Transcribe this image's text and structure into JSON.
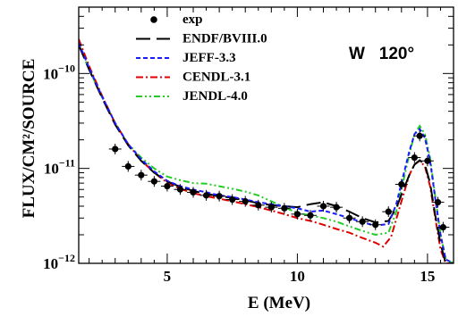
{
  "chart_data": {
    "type": "line",
    "xlabel": "E (MeV)",
    "ylabel": "FLUX/CM²/SOURCE",
    "annotation": "W   120°",
    "xlim": [
      1.6,
      16
    ],
    "ylim": [
      1e-12,
      5e-10
    ],
    "yscale": "log",
    "x_ticks": [
      5,
      10,
      15
    ],
    "y_ticks": [
      {
        "value": 1e-12,
        "label": "10",
        "exp": "−12"
      },
      {
        "value": 1e-11,
        "label": "10",
        "exp": "−11"
      },
      {
        "value": 1e-10,
        "label": "10",
        "exp": "−10"
      }
    ],
    "legend_position": "top-left",
    "series": [
      {
        "name": "exp",
        "color": "#000000",
        "style": "points",
        "x": [
          3.0,
          3.5,
          4.0,
          4.5,
          5.0,
          5.5,
          6.0,
          6.5,
          7.0,
          7.5,
          8.0,
          8.5,
          9.0,
          9.5,
          10.0,
          10.5,
          11.0,
          11.5,
          12.0,
          12.5,
          13.0,
          13.5,
          14.0,
          14.5,
          14.7,
          15.0,
          15.4,
          15.6
        ],
        "y": [
          1.6e-11,
          1.05e-11,
          8.5e-12,
          7.3e-12,
          6.5e-12,
          6e-12,
          5.6e-12,
          5.2e-12,
          5.1e-12,
          4.7e-12,
          4.5e-12,
          4.1e-12,
          3.9e-12,
          3.8e-12,
          3.3e-12,
          3.2e-12,
          4e-12,
          3.9e-12,
          3e-12,
          2.75e-12,
          2.55e-12,
          3.5e-12,
          6.8e-12,
          1.3e-11,
          2.2e-11,
          1.2e-11,
          4.4e-12,
          2.4e-12
        ]
      },
      {
        "name": "ENDF/BVIII.0",
        "color": "#000000",
        "style": "long-dash",
        "x": [
          1.6,
          2.0,
          2.5,
          3.0,
          3.5,
          4.0,
          4.5,
          5.0,
          5.5,
          6.0,
          6.5,
          7.0,
          7.5,
          8.0,
          8.5,
          9.0,
          9.5,
          10.0,
          10.5,
          11.0,
          11.5,
          12.0,
          12.5,
          13.0,
          13.5,
          13.8,
          14.0,
          14.3,
          14.5,
          14.7,
          14.9,
          15.1,
          15.3,
          15.5,
          15.7,
          16.0
        ],
        "y": [
          2e-10,
          1.1e-10,
          5.5e-11,
          2.9e-11,
          1.75e-11,
          1.2e-11,
          9e-12,
          7.3e-12,
          6.4e-12,
          5.8e-12,
          5.4e-12,
          5.1e-12,
          4.9e-12,
          4.6e-12,
          4.3e-12,
          4.1e-12,
          4e-12,
          3.9e-12,
          4.2e-12,
          4.4e-12,
          4e-12,
          3.5e-12,
          3e-12,
          2.7e-12,
          2.8e-12,
          3.8e-12,
          5.3e-12,
          8.5e-12,
          1.1e-11,
          1.22e-11,
          1.1e-11,
          7e-12,
          3.2e-12,
          1.6e-12,
          1e-12,
          1e-12
        ]
      },
      {
        "name": "JEFF-3.3",
        "color": "#1a1aff",
        "style": "short-dash",
        "x": [
          1.6,
          2.0,
          2.5,
          3.0,
          3.5,
          4.0,
          4.5,
          5.0,
          5.5,
          6.0,
          6.5,
          7.0,
          7.5,
          8.0,
          8.5,
          9.0,
          9.5,
          10.0,
          10.5,
          11.0,
          11.5,
          12.0,
          12.5,
          13.0,
          13.5,
          13.8,
          14.0,
          14.3,
          14.5,
          14.7,
          14.9,
          15.1,
          15.3,
          15.5,
          15.7,
          16.0
        ],
        "y": [
          2.1e-10,
          1.15e-10,
          5.7e-11,
          3e-11,
          1.8e-11,
          1.25e-11,
          9.3e-12,
          7.4e-12,
          6.5e-12,
          6e-12,
          5.6e-12,
          5.2e-12,
          5e-12,
          4.7e-12,
          4.4e-12,
          4.2e-12,
          4e-12,
          3.8e-12,
          3.5e-12,
          3.6e-12,
          3.3e-12,
          3e-12,
          2.7e-12,
          2.5e-12,
          2.6e-12,
          4.2e-12,
          7e-12,
          1.5e-11,
          2.3e-11,
          2.6e-11,
          2.1e-11,
          1.2e-11,
          4.8e-12,
          2e-12,
          1.1e-12,
          1e-12
        ]
      },
      {
        "name": "CENDL-3.1",
        "color": "#e00000",
        "style": "dash-dot",
        "x": [
          1.6,
          2.0,
          2.5,
          3.0,
          3.5,
          4.0,
          4.5,
          5.0,
          5.5,
          6.0,
          6.5,
          7.0,
          7.5,
          8.0,
          8.5,
          9.0,
          9.5,
          10.0,
          10.5,
          11.0,
          11.5,
          12.0,
          12.5,
          13.0,
          13.3,
          13.6,
          14.0,
          14.3,
          14.5,
          14.7,
          14.9,
          15.1,
          15.3,
          15.5,
          15.7,
          16.0
        ],
        "y": [
          2.3e-10,
          1.2e-10,
          5.8e-11,
          3e-11,
          1.8e-11,
          1.22e-11,
          9e-12,
          7.1e-12,
          6.1e-12,
          5.5e-12,
          5.1e-12,
          4.8e-12,
          4.5e-12,
          4.2e-12,
          3.9e-12,
          3.6e-12,
          3.3e-12,
          3e-12,
          2.8e-12,
          2.55e-12,
          2.3e-12,
          2.1e-12,
          1.85e-12,
          1.65e-12,
          1.5e-12,
          1.9e-12,
          4.5e-12,
          8.5e-12,
          1.1e-11,
          1.2e-11,
          1.05e-11,
          6.5e-12,
          3e-12,
          1.4e-12,
          1e-12,
          1e-12
        ]
      },
      {
        "name": "JENDL-4.0",
        "color": "#22cc22",
        "style": "dash-dot-dot",
        "x": [
          1.6,
          2.0,
          2.5,
          3.0,
          3.5,
          4.0,
          4.5,
          5.0,
          5.5,
          6.0,
          6.5,
          7.0,
          7.5,
          8.0,
          8.5,
          9.0,
          9.5,
          10.0,
          10.5,
          11.0,
          11.5,
          12.0,
          12.5,
          13.0,
          13.5,
          13.8,
          14.0,
          14.3,
          14.5,
          14.7,
          14.9,
          15.1,
          15.3,
          15.5,
          15.7,
          16.0
        ],
        "y": [
          2e-10,
          1.1e-10,
          5.6e-11,
          3e-11,
          1.8e-11,
          1.3e-11,
          1e-11,
          8.2e-12,
          7.5e-12,
          7e-12,
          6.9e-12,
          6.5e-12,
          6.1e-12,
          5.7e-12,
          5.2e-12,
          4.5e-12,
          3.9e-12,
          3.4e-12,
          3.2e-12,
          3e-12,
          2.75e-12,
          2.45e-12,
          2.2e-12,
          2e-12,
          2.1e-12,
          3.5e-12,
          6e-12,
          1.4e-11,
          2.3e-11,
          2.8e-11,
          2.3e-11,
          1.3e-11,
          5e-12,
          2e-12,
          1.1e-12,
          1e-12
        ]
      }
    ]
  }
}
